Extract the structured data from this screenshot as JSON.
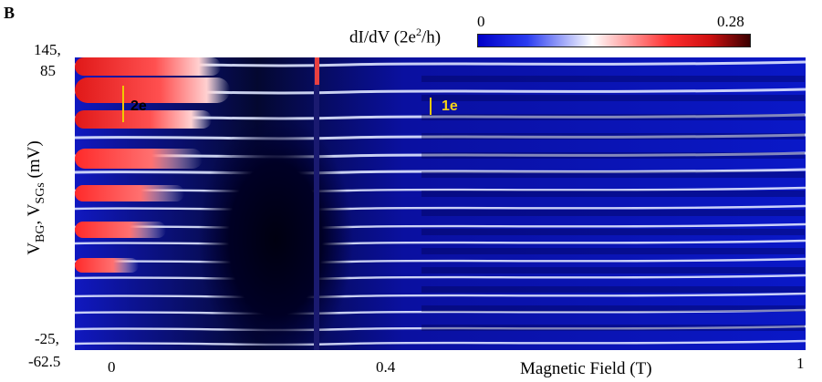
{
  "panel_letter": "B",
  "colorbar": {
    "title": "dI/dV (2e²/h)",
    "min_label": "0",
    "max_label": "0.28",
    "colors": [
      "#0000c8",
      "#ffffff",
      "#ff3030",
      "#3a0000"
    ]
  },
  "chart_data": {
    "type": "heatmap",
    "xlabel": "Magnetic Field (T)",
    "ylabel": "V_BG, V_SGs (mV)",
    "xlim": [
      0,
      1
    ],
    "x_ticks": [
      "0",
      "0.4",
      "1"
    ],
    "y_tick_top": [
      "145,",
      "85"
    ],
    "y_tick_bottom": [
      "-25,",
      "-62.5"
    ],
    "zlim": [
      0,
      0.28
    ],
    "zlabel": "dI/dV (2e²/h)",
    "annotations": [
      {
        "text": "2e",
        "x": 0.02
      },
      {
        "text": "1e",
        "x": 0.45
      }
    ]
  }
}
